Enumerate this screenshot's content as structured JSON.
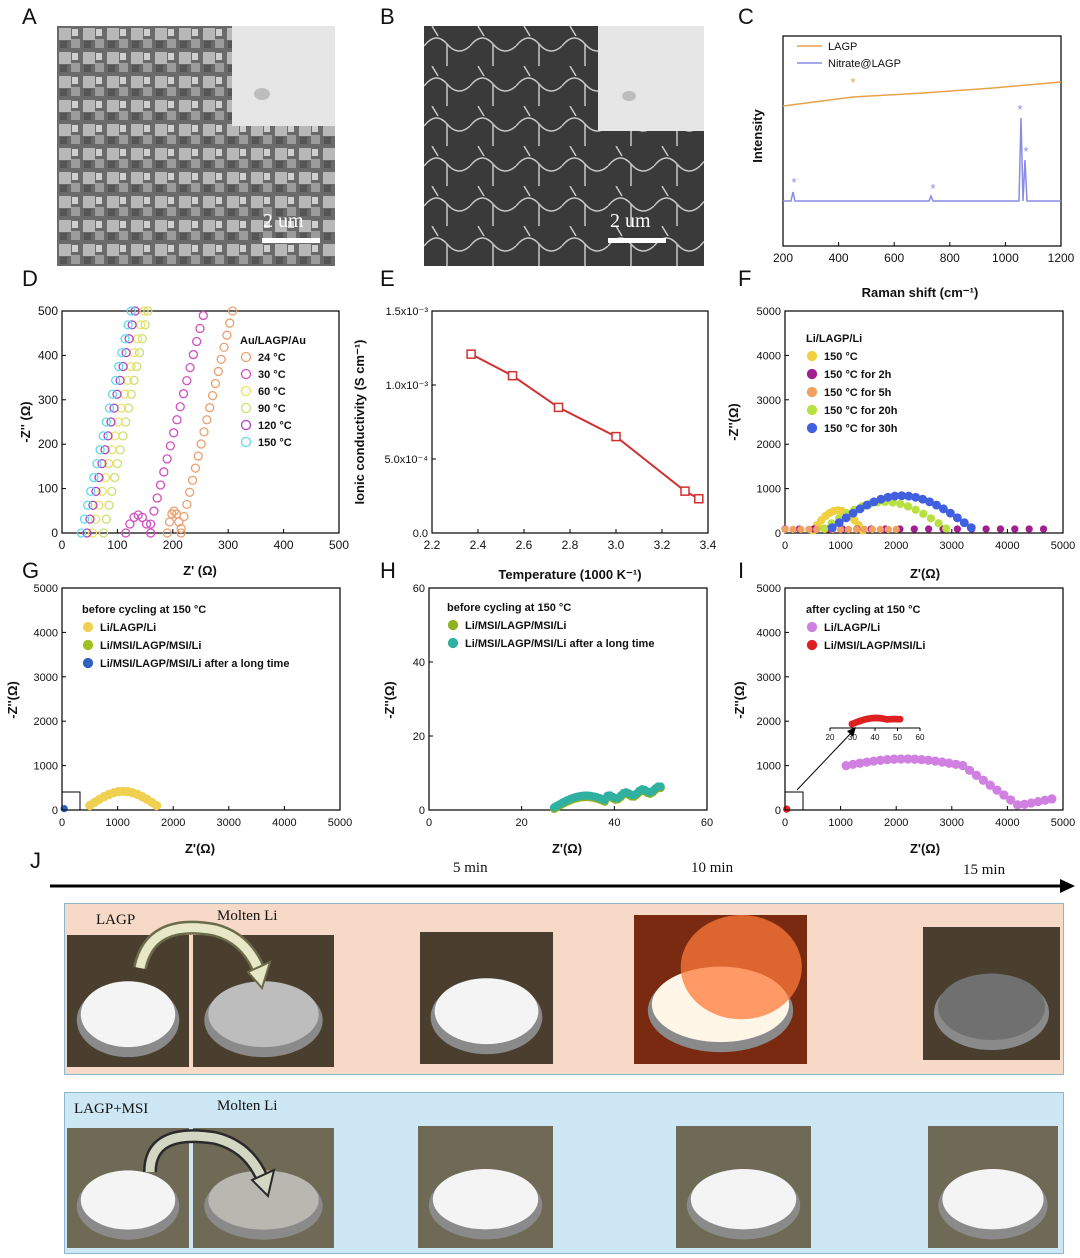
{
  "panels": {
    "A": "A",
    "B": "B",
    "C": "C",
    "D": "D",
    "E": "E",
    "F": "F",
    "G": "G",
    "H": "H",
    "I": "I",
    "J": "J"
  },
  "scale_bar": "2 um",
  "C": {
    "xlabel": "Raman shift (cm⁻¹)",
    "ylabel": "Intensity",
    "xticks": [
      "200",
      "400",
      "600",
      "800",
      "1000",
      "1200"
    ],
    "legend": [
      "LAGP",
      "Nitrate@LAGP"
    ],
    "marker": "*",
    "colors": [
      "#e8a24a",
      "#8a8ae8"
    ]
  },
  "D": {
    "xlabel": "Z' (Ω)",
    "ylabel": "-Z'' (Ω)",
    "xticks": [
      "0",
      "100",
      "200",
      "300",
      "400",
      "500"
    ],
    "yticks": [
      "0",
      "100",
      "200",
      "300",
      "400",
      "500"
    ],
    "legend_title": "Au/LAGP/Au",
    "legend": [
      "24 °C",
      "30 °C",
      "60 °C",
      "90 °C",
      "120 °C",
      "150 °C"
    ],
    "colors": [
      "#e8a070",
      "#d050c0",
      "#f0e060",
      "#c8e070",
      "#b040c0",
      "#60d8e8"
    ]
  },
  "E": {
    "xlabel": "Temperature (1000 K⁻¹)",
    "ylabel": "Ionic conductivity (S cm⁻¹)",
    "xticks": [
      "2.2",
      "2.4",
      "2.6",
      "2.8",
      "3.0",
      "3.2",
      "3.4"
    ],
    "yticks": [
      "0.0",
      "5.0x10⁻⁴",
      "1.0x10⁻³",
      "1.5x10⁻³"
    ],
    "color": "#d03030"
  },
  "F": {
    "xlabel": "Z'(Ω)",
    "ylabel": "-Z''(Ω)",
    "xticks": [
      "0",
      "1000",
      "2000",
      "3000",
      "4000",
      "5000"
    ],
    "yticks": [
      "0",
      "1000",
      "2000",
      "3000",
      "4000",
      "5000"
    ],
    "legend_title": "Li/LAGP/Li",
    "legend": [
      "150 °C",
      "150 °C  for 2h",
      "150 °C  for 5h",
      "150 °C  for 20h",
      "150 °C  for 30h"
    ],
    "colors": [
      "#f0d040",
      "#a02090",
      "#f0a060",
      "#b8e040",
      "#4060e0"
    ]
  },
  "G": {
    "xlabel": "Z'(Ω)",
    "ylabel": "-Z''(Ω)",
    "xticks": [
      "0",
      "1000",
      "2000",
      "3000",
      "4000",
      "5000"
    ],
    "yticks": [
      "0",
      "1000",
      "2000",
      "3000",
      "4000",
      "5000"
    ],
    "legend_title": "before cycling at 150 °C",
    "legend": [
      "Li/LAGP/Li",
      "Li/MSI/LAGP/MSI/Li",
      "Li/MSI/LAGP/MSI/Li after a long time"
    ],
    "colors": [
      "#f0d050",
      "#a0c020",
      "#3060c0"
    ]
  },
  "H": {
    "xlabel": "Z'(Ω)",
    "ylabel": "-Z''(Ω)",
    "xticks": [
      "0",
      "20",
      "40",
      "60"
    ],
    "yticks": [
      "0",
      "20",
      "40",
      "60"
    ],
    "legend_title": "before cycling at 150 °C",
    "legend": [
      "Li/MSI/LAGP/MSI/Li",
      "Li/MSI/LAGP/MSI/Li after a long time"
    ],
    "colors": [
      "#90b020",
      "#30b0a0"
    ]
  },
  "I": {
    "xlabel": "Z'(Ω)",
    "ylabel": "-Z''(Ω)",
    "xticks": [
      "0",
      "1000",
      "2000",
      "3000",
      "4000",
      "5000"
    ],
    "yticks": [
      "0",
      "1000",
      "2000",
      "3000",
      "4000",
      "5000"
    ],
    "inset_xticks": [
      "20",
      "30",
      "40",
      "50",
      "60"
    ],
    "legend_title": "after cycling at 150 °C",
    "legend": [
      "Li/LAGP/Li",
      "Li/MSI/LAGP/MSI/Li"
    ],
    "colors": [
      "#d080e0",
      "#e02020"
    ]
  },
  "J": {
    "times": [
      "5 min",
      "10 min",
      "15 min"
    ],
    "row1": {
      "sample": "LAGP",
      "molten": "Molten Li"
    },
    "row2": {
      "sample": "LAGP+MSI",
      "molten": "Molten Li"
    }
  }
}
